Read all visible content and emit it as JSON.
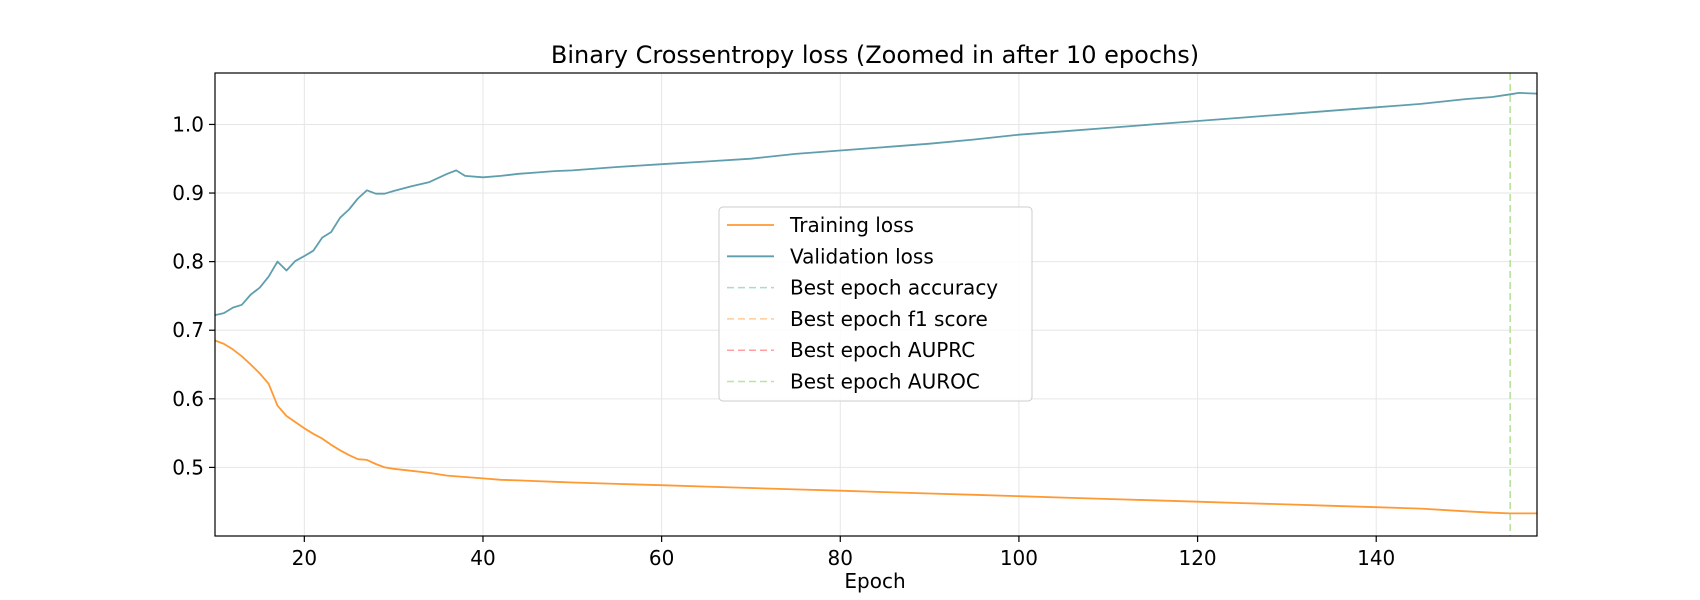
{
  "chart_data": {
    "type": "line",
    "title": "Binary Crossentropy loss (Zoomed in after 10 epochs)",
    "xlabel": "Epoch",
    "ylabel": "",
    "xlim": [
      10,
      158
    ],
    "ylim": [
      0.4,
      1.075
    ],
    "xticks": [
      20,
      40,
      60,
      80,
      100,
      120,
      140
    ],
    "xtick_labels": [
      "20",
      "40",
      "60",
      "80",
      "100",
      "120",
      "140"
    ],
    "yticks": [
      0.5,
      0.6,
      0.7,
      0.8,
      0.9,
      1.0
    ],
    "ytick_labels": [
      "0.5",
      "0.6",
      "0.7",
      "0.8",
      "0.9",
      "1.0"
    ],
    "grid": true,
    "legend_position": "center",
    "colors": {
      "training": "#ff9933",
      "validation": "#5f9fad",
      "best_accuracy": "#a8dccc",
      "best_f1": "#ffcc99",
      "best_auprc": "#ff9f9f",
      "best_auroc": "#b8e6a0"
    },
    "series": [
      {
        "name": "Training loss",
        "key": "training",
        "x": [
          10,
          11,
          12,
          13,
          14,
          15,
          16,
          17,
          18,
          19,
          20,
          21,
          22,
          23,
          24,
          25,
          26,
          27,
          28,
          29,
          30,
          32,
          34,
          36,
          38,
          40,
          42,
          44,
          46,
          48,
          50,
          55,
          60,
          65,
          70,
          75,
          80,
          85,
          90,
          95,
          100,
          105,
          110,
          115,
          120,
          125,
          130,
          135,
          140,
          145,
          150,
          153,
          155,
          158
        ],
        "y": [
          0.685,
          0.68,
          0.672,
          0.662,
          0.65,
          0.637,
          0.622,
          0.59,
          0.575,
          0.566,
          0.557,
          0.549,
          0.542,
          0.533,
          0.525,
          0.518,
          0.512,
          0.511,
          0.505,
          0.5,
          0.498,
          0.495,
          0.492,
          0.488,
          0.486,
          0.484,
          0.482,
          0.481,
          0.48,
          0.479,
          0.478,
          0.476,
          0.474,
          0.472,
          0.47,
          0.468,
          0.466,
          0.464,
          0.462,
          0.46,
          0.458,
          0.456,
          0.454,
          0.452,
          0.45,
          0.448,
          0.446,
          0.444,
          0.442,
          0.44,
          0.436,
          0.434,
          0.433,
          0.433
        ]
      },
      {
        "name": "Validation loss",
        "key": "validation",
        "x": [
          10,
          11,
          12,
          13,
          14,
          15,
          16,
          17,
          18,
          19,
          20,
          21,
          22,
          23,
          24,
          25,
          26,
          27,
          28,
          29,
          30,
          32,
          34,
          36,
          37,
          38,
          40,
          42,
          44,
          46,
          48,
          50,
          55,
          60,
          65,
          70,
          75,
          80,
          85,
          90,
          95,
          100,
          105,
          110,
          115,
          120,
          125,
          130,
          135,
          140,
          145,
          150,
          153,
          155,
          156,
          158
        ],
        "y": [
          0.722,
          0.725,
          0.733,
          0.737,
          0.752,
          0.762,
          0.778,
          0.8,
          0.787,
          0.801,
          0.808,
          0.816,
          0.835,
          0.843,
          0.864,
          0.876,
          0.892,
          0.904,
          0.899,
          0.899,
          0.903,
          0.91,
          0.916,
          0.928,
          0.933,
          0.925,
          0.923,
          0.925,
          0.928,
          0.93,
          0.932,
          0.933,
          0.938,
          0.942,
          0.946,
          0.95,
          0.957,
          0.962,
          0.967,
          0.972,
          0.978,
          0.985,
          0.99,
          0.995,
          1.0,
          1.005,
          1.01,
          1.015,
          1.02,
          1.025,
          1.03,
          1.037,
          1.04,
          1.044,
          1.046,
          1.045
        ]
      }
    ],
    "vlines": [
      {
        "name": "Best epoch accuracy",
        "key": "best_accuracy",
        "x": 155
      },
      {
        "name": "Best epoch f1 score",
        "key": "best_f1",
        "x": 155
      },
      {
        "name": "Best epoch AUPRC",
        "key": "best_auprc",
        "x": 155
      },
      {
        "name": "Best epoch AUROC",
        "key": "best_auroc",
        "x": 155
      }
    ],
    "legend": [
      {
        "label": "Training loss",
        "key": "training",
        "style": "solid"
      },
      {
        "label": "Validation loss",
        "key": "validation",
        "style": "solid"
      },
      {
        "label": "Best epoch accuracy",
        "key": "best_accuracy",
        "style": "dashed"
      },
      {
        "label": "Best epoch f1 score",
        "key": "best_f1",
        "style": "dashed"
      },
      {
        "label": "Best epoch AUPRC",
        "key": "best_auprc",
        "style": "dashed"
      },
      {
        "label": "Best epoch AUROC",
        "key": "best_auroc",
        "style": "dashed"
      }
    ]
  }
}
